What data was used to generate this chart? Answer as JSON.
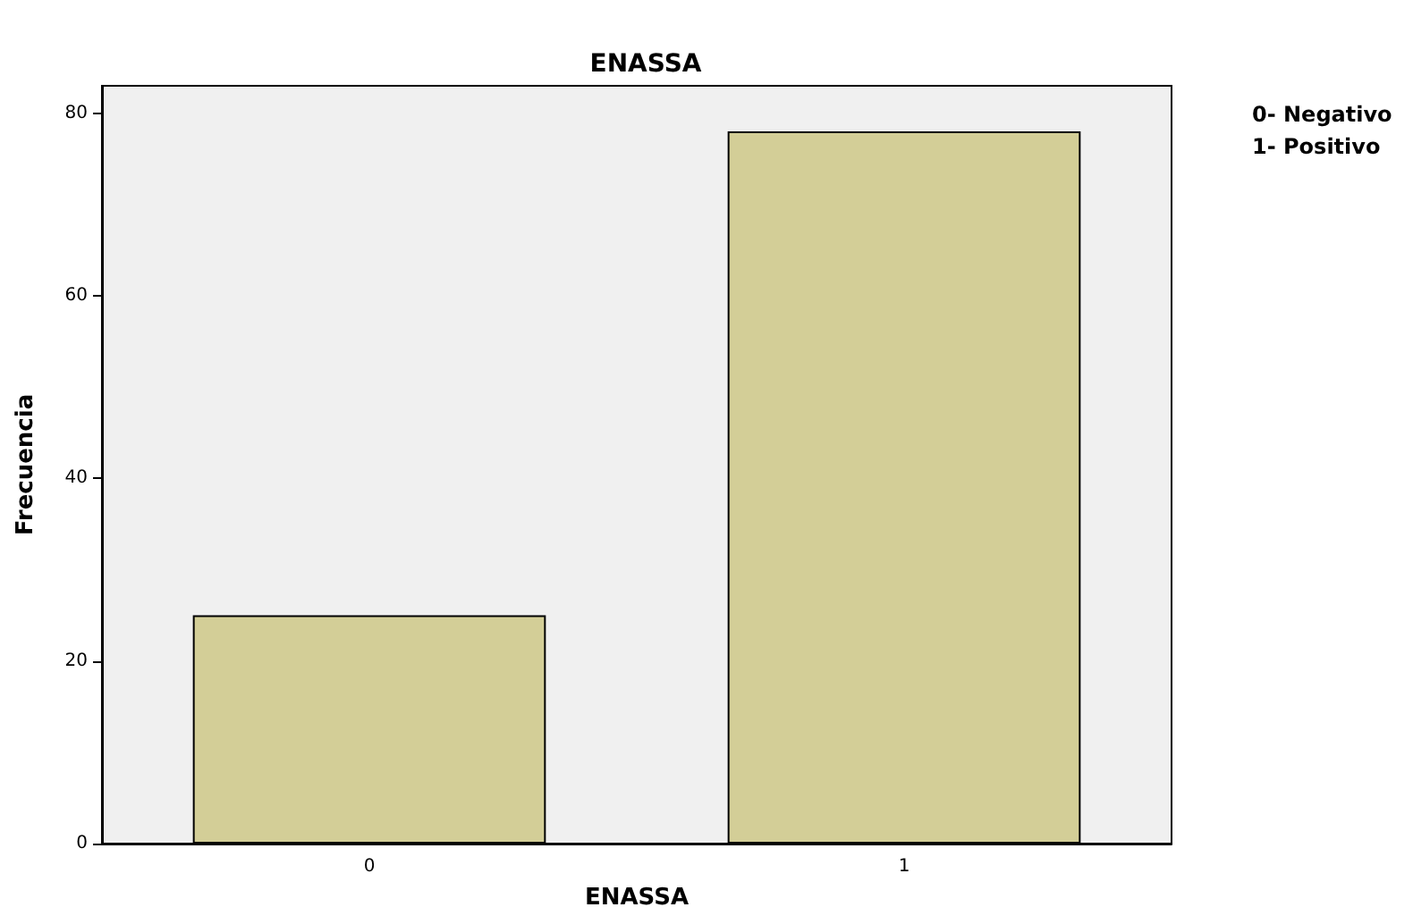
{
  "chart_data": {
    "type": "bar",
    "title": "ENASSA",
    "xlabel": "ENASSA",
    "ylabel": "Frecuencia",
    "categories": [
      "0",
      "1"
    ],
    "values": [
      25,
      78
    ],
    "color": "#d3ce97",
    "ylim": [
      0,
      83
    ],
    "yticks": [
      0,
      20,
      40,
      60,
      80
    ],
    "grid": false,
    "annotations": [
      "0- Negativo",
      "1- Positivo"
    ]
  }
}
